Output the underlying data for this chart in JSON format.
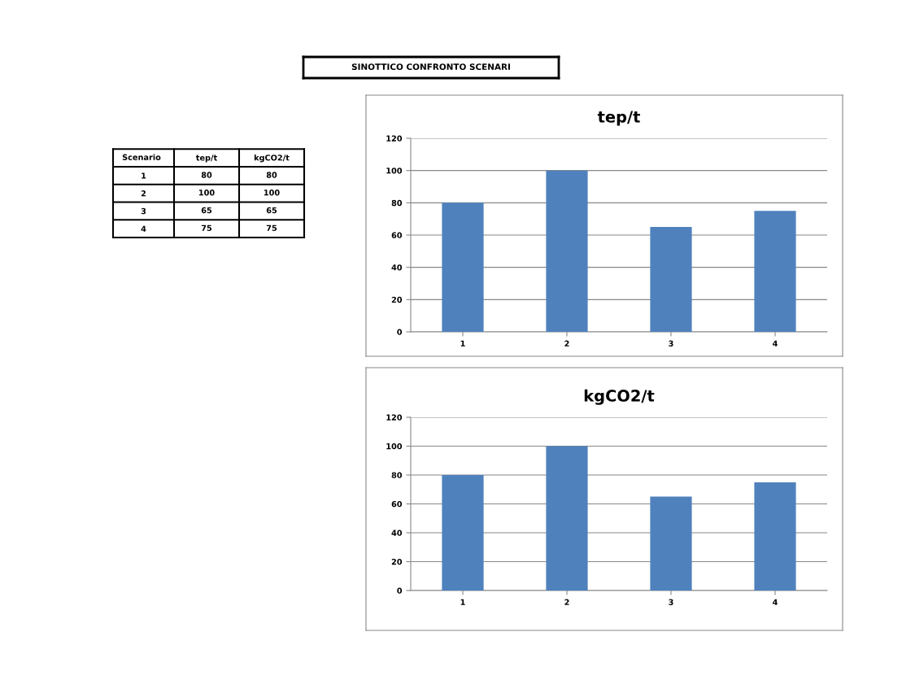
{
  "chart_data": [
    {
      "type": "other",
      "title": "SINOTTICO CONFRONTO SCENARI"
    },
    {
      "type": "heatmap",
      "ylabel": "Scenario",
      "categories": [
        "tep/t",
        "kgCO2/t"
      ],
      "y_categories": [
        "1",
        "2",
        "3",
        "4"
      ],
      "cells": [
        [
          80,
          80
        ],
        [
          100,
          100
        ],
        [
          65,
          65
        ],
        [
          75,
          75
        ]
      ],
      "data_labels": true
    },
    {
      "type": "bar",
      "title": "tep/t",
      "categories": [
        "1",
        "2",
        "3",
        "4"
      ],
      "values": [
        80,
        100,
        65,
        75
      ],
      "color": "#4f81bd",
      "ylim": [
        0,
        120
      ],
      "yticks": [
        0,
        20,
        40,
        60,
        80,
        100,
        120
      ],
      "grid": "y",
      "legend": false
    },
    {
      "type": "bar",
      "title": "kgCO2/t",
      "categories": [
        "1",
        "2",
        "3",
        "4"
      ],
      "values": [
        80,
        100,
        65,
        75
      ],
      "color": "#4f81bd",
      "ylim": [
        0,
        120
      ],
      "yticks": [
        0,
        20,
        40,
        60,
        80,
        100,
        120
      ],
      "grid": "y",
      "legend": false
    }
  ]
}
